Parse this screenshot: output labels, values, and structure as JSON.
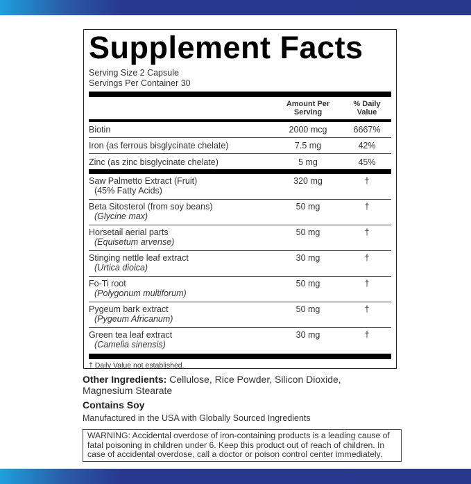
{
  "colors": {
    "band_start": "#1ea0dc",
    "band_end": "#27388c"
  },
  "title": "Supplement Facts",
  "serving_size": "Serving Size 2 Capsule",
  "servings_per_container": "Servings Per Container 30",
  "headers": {
    "amount": "Amount Per Serving",
    "dv": "% Daily Value"
  },
  "vitamins": [
    {
      "name": "Biotin",
      "amount": "2000 mcg",
      "dv": "6667%"
    },
    {
      "name": "Iron (as ferrous bisglycinate chelate)",
      "amount": "7.5 mg",
      "dv": "42%"
    },
    {
      "name": "Zinc (as zinc bisglycinate chelate)",
      "amount": "5 mg",
      "dv": "45%"
    }
  ],
  "herbals": [
    {
      "name": "Saw Palmetto Extract (Fruit)",
      "sub": "(45% Fatty Acids)",
      "amount": "320 mg",
      "dv": "†",
      "italic": false
    },
    {
      "name": "Beta Sitosterol (from soy beans)",
      "sub": "(Glycine max)",
      "amount": "50 mg",
      "dv": "†",
      "italic": true
    },
    {
      "name": "Horsetail aerial parts",
      "sub": "(Equisetum arvense)",
      "amount": "50 mg",
      "dv": "†",
      "italic": true
    },
    {
      "name": "Stinging nettle leaf extract",
      "sub": "(Urtica dioica)",
      "amount": "30 mg",
      "dv": "†",
      "italic": true
    },
    {
      "name": "Fo-Ti root",
      "sub": "(Polygonum multiforum)",
      "amount": "50 mg",
      "dv": "†",
      "italic": true
    },
    {
      "name": "Pygeum bark extract",
      "sub": "(Pygeum Africanum)",
      "amount": "50 mg",
      "dv": "†",
      "italic": true
    },
    {
      "name": "Green tea leaf extract",
      "sub": "(Camelia sinensis)",
      "amount": "30 mg",
      "dv": "†",
      "italic": true
    }
  ],
  "footnote": "† Daily Value not established.",
  "other_label": "Other Ingredients:",
  "other_text": " Cellulose, Rice Powder, Silicon Dioxide, Magnesium Stearate",
  "contains": "Contains Soy",
  "manufactured": "Manufactured in the USA with Globally Sourced Ingredients",
  "warning": "WARNING: Accidental overdose of iron-containing products is a leading cause of fatal poisoning in children under 6. Keep this product out of reach of children. In case of accidental overdose, call a doctor or poison control center immediately."
}
